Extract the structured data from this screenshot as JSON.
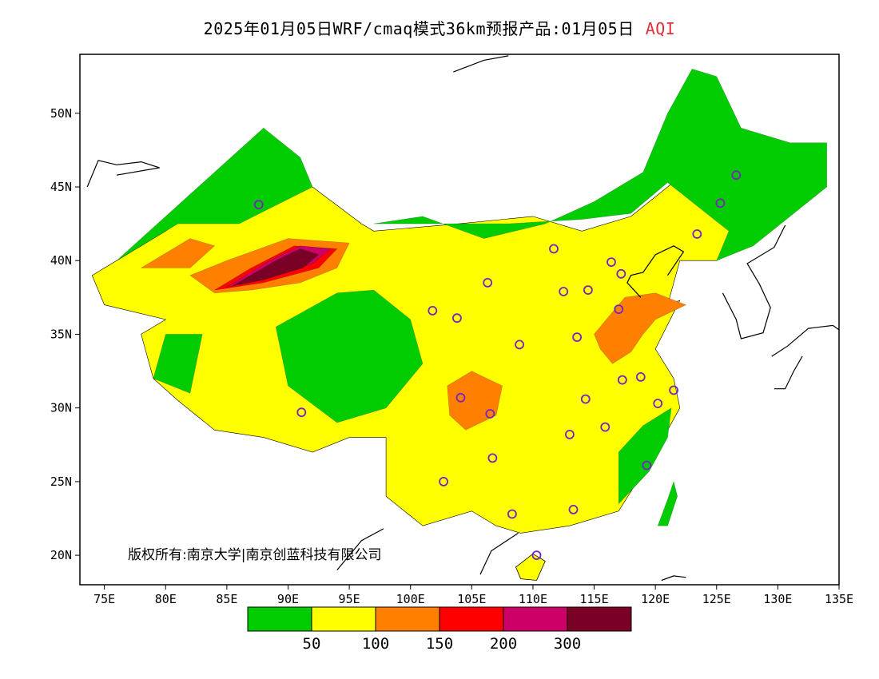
{
  "title": {
    "main": "2025年01月05日WRF/cmaq模式36km预报产品:01月05日",
    "variable": "AQI"
  },
  "copyright": "版权所有:南京大学|南京创蓝科技有限公司",
  "axes": {
    "lon_min": 73,
    "lon_max": 135,
    "lat_min": 18,
    "lat_max": 54,
    "x_ticks": [
      {
        "value": 75,
        "label": "75E"
      },
      {
        "value": 80,
        "label": "80E"
      },
      {
        "value": 85,
        "label": "85E"
      },
      {
        "value": 90,
        "label": "90E"
      },
      {
        "value": 95,
        "label": "95E"
      },
      {
        "value": 100,
        "label": "100E"
      },
      {
        "value": 105,
        "label": "105E"
      },
      {
        "value": 110,
        "label": "110E"
      },
      {
        "value": 115,
        "label": "115E"
      },
      {
        "value": 120,
        "label": "120E"
      },
      {
        "value": 125,
        "label": "125E"
      },
      {
        "value": 130,
        "label": "130E"
      },
      {
        "value": 135,
        "label": "135E"
      }
    ],
    "y_ticks": [
      {
        "value": 20,
        "label": "20N"
      },
      {
        "value": 25,
        "label": "25N"
      },
      {
        "value": 30,
        "label": "30N"
      },
      {
        "value": 35,
        "label": "35N"
      },
      {
        "value": 40,
        "label": "40N"
      },
      {
        "value": 45,
        "label": "45N"
      },
      {
        "value": 50,
        "label": "50N"
      }
    ]
  },
  "legend": {
    "colors": [
      "#00cc00",
      "#ffff00",
      "#ff8000",
      "#ff0000",
      "#cc0066",
      "#7a0025"
    ],
    "labels": [
      "50",
      "100",
      "150",
      "200",
      "300"
    ]
  },
  "chart_data": {
    "type": "heatmap",
    "title": "2025年01月05日WRF/cmaq模式36km预报产品:01月05日 AQI",
    "xlabel": "",
    "ylabel": "",
    "xlim": [
      73,
      135
    ],
    "ylim": [
      18,
      54
    ],
    "color_scale": [
      {
        "range": "0-50",
        "color": "#00cc00"
      },
      {
        "range": "50-100",
        "color": "#ffff00"
      },
      {
        "range": "100-150",
        "color": "#ff8000"
      },
      {
        "range": "150-200",
        "color": "#ff0000"
      },
      {
        "range": "200-300",
        "color": "#cc0066"
      },
      {
        "range": ">300",
        "color": "#7a0025"
      }
    ],
    "regions": [
      {
        "level": "50-100",
        "lonlat": [
          [
            97,
            42
          ],
          [
            104,
            42.5
          ],
          [
            110,
            43
          ],
          [
            114,
            42
          ],
          [
            118,
            43
          ],
          [
            121,
            45
          ],
          [
            124,
            47
          ],
          [
            127,
            48
          ],
          [
            131,
            47
          ],
          [
            130,
            45
          ],
          [
            128,
            42
          ],
          [
            125,
            40
          ],
          [
            122,
            40
          ],
          [
            121,
            37
          ],
          [
            122,
            37.3
          ],
          [
            120,
            34
          ],
          [
            121.5,
            32
          ],
          [
            122,
            30
          ],
          [
            120,
            27
          ],
          [
            117,
            23
          ],
          [
            113,
            22
          ],
          [
            109,
            21.5
          ],
          [
            107,
            22
          ],
          [
            105,
            23
          ],
          [
            101,
            22
          ],
          [
            98,
            24
          ],
          [
            98,
            28
          ],
          [
            95,
            28
          ],
          [
            92,
            27
          ],
          [
            88,
            28
          ],
          [
            84,
            28.5
          ],
          [
            81,
            30.5
          ],
          [
            79,
            32
          ],
          [
            78,
            35
          ],
          [
            80,
            36
          ],
          [
            75,
            37
          ],
          [
            74,
            39
          ],
          [
            76,
            40
          ],
          [
            80,
            42
          ],
          [
            85,
            45
          ],
          [
            88,
            47
          ],
          [
            92,
            45
          ],
          [
            96,
            42.5
          ]
        ]
      },
      {
        "level": "0-50",
        "lonlat": [
          [
            97,
            42.5
          ],
          [
            101,
            43
          ],
          [
            106,
            41.5
          ],
          [
            111,
            42.5
          ],
          [
            115,
            44
          ],
          [
            119,
            46
          ],
          [
            121,
            50
          ],
          [
            123,
            53
          ],
          [
            125,
            52.5
          ],
          [
            127,
            49
          ],
          [
            131,
            48
          ],
          [
            134,
            48
          ],
          [
            134,
            45
          ],
          [
            131,
            43
          ],
          [
            128,
            41
          ],
          [
            125,
            40
          ],
          [
            126,
            42
          ],
          [
            121,
            45.3
          ],
          [
            118,
            43.2
          ],
          [
            114,
            42.8
          ],
          [
            108,
            42.5
          ],
          [
            104,
            42.5
          ]
        ]
      },
      {
        "level": "0-50",
        "lonlat": [
          [
            84,
            46
          ],
          [
            88,
            49
          ],
          [
            91,
            47
          ],
          [
            92,
            45
          ],
          [
            86,
            42.5
          ],
          [
            81,
            42.5
          ],
          [
            76,
            40
          ],
          [
            80,
            43
          ]
        ]
      },
      {
        "level": "0-50",
        "lonlat": [
          [
            89,
            35.5
          ],
          [
            94,
            37.8
          ],
          [
            97,
            38
          ],
          [
            100,
            36
          ],
          [
            101,
            33
          ],
          [
            98,
            30
          ],
          [
            94,
            29
          ],
          [
            90,
            31.5
          ]
        ]
      },
      {
        "level": "0-50",
        "lonlat": [
          [
            80,
            35
          ],
          [
            83,
            35
          ],
          [
            82,
            31
          ],
          [
            79,
            32
          ]
        ]
      },
      {
        "level": "0-50",
        "lonlat": [
          [
            117,
            27
          ],
          [
            119,
            28.8
          ],
          [
            121.3,
            30
          ],
          [
            121,
            28
          ],
          [
            119.5,
            25.7
          ],
          [
            117,
            23.5
          ]
        ]
      },
      {
        "level": "0-50",
        "lonlat": [
          [
            120.2,
            22
          ],
          [
            121,
            23.8
          ],
          [
            121.5,
            25
          ],
          [
            121.8,
            24
          ],
          [
            121,
            22
          ]
        ]
      },
      {
        "level": "100-150",
        "lonlat": [
          [
            103,
            31.5
          ],
          [
            105,
            32.5
          ],
          [
            107.5,
            31.5
          ],
          [
            107,
            29.5
          ],
          [
            104.5,
            28.5
          ],
          [
            103.2,
            29.5
          ]
        ]
      },
      {
        "level": "100-150",
        "lonlat": [
          [
            115,
            35
          ],
          [
            117.5,
            37.5
          ],
          [
            120,
            37.8
          ],
          [
            122.5,
            37
          ],
          [
            120,
            36
          ],
          [
            119,
            35
          ],
          [
            118,
            33.8
          ],
          [
            116.5,
            33
          ],
          [
            115.5,
            34
          ]
        ]
      },
      {
        "level": "100-150",
        "lonlat": [
          [
            82,
            39
          ],
          [
            85,
            40
          ],
          [
            90,
            41.5
          ],
          [
            95,
            41.2
          ],
          [
            94,
            39.5
          ],
          [
            91,
            38.5
          ],
          [
            87,
            38
          ],
          [
            84,
            37.8
          ]
        ]
      },
      {
        "level": "100-150",
        "lonlat": [
          [
            78,
            39.5
          ],
          [
            82,
            41.5
          ],
          [
            84,
            41
          ],
          [
            82,
            39.5
          ]
        ]
      },
      {
        "level": "150-200",
        "lonlat": [
          [
            84,
            38
          ],
          [
            87,
            39.5
          ],
          [
            90.5,
            41
          ],
          [
            94,
            40.8
          ],
          [
            92.5,
            39.5
          ],
          [
            88,
            38.5
          ]
        ]
      },
      {
        "level": "200-300",
        "lonlat": [
          [
            85,
            38.2
          ],
          [
            88.5,
            40
          ],
          [
            91,
            41
          ],
          [
            93.5,
            40.8
          ],
          [
            92,
            39.8
          ],
          [
            88,
            38.7
          ]
        ]
      },
      {
        "level": ">300",
        "lonlat": [
          [
            85.5,
            38.3
          ],
          [
            89,
            40
          ],
          [
            91,
            40.8
          ],
          [
            92.5,
            40.4
          ],
          [
            91.2,
            39.5
          ],
          [
            88,
            38.7
          ]
        ]
      }
    ],
    "markers": [
      {
        "lon": 87.6,
        "lat": 43.8
      },
      {
        "lon": 91.1,
        "lat": 29.7
      },
      {
        "lon": 101.8,
        "lat": 36.6
      },
      {
        "lon": 103.8,
        "lat": 36.1
      },
      {
        "lon": 106.3,
        "lat": 38.5
      },
      {
        "lon": 111.7,
        "lat": 40.8
      },
      {
        "lon": 112.5,
        "lat": 37.9
      },
      {
        "lon": 114.5,
        "lat": 38
      },
      {
        "lon": 116.4,
        "lat": 39.9
      },
      {
        "lon": 117.2,
        "lat": 39.1
      },
      {
        "lon": 117,
        "lat": 36.7
      },
      {
        "lon": 113.6,
        "lat": 34.8
      },
      {
        "lon": 108.9,
        "lat": 34.3
      },
      {
        "lon": 104.1,
        "lat": 30.7
      },
      {
        "lon": 106.5,
        "lat": 29.6
      },
      {
        "lon": 114.3,
        "lat": 30.6
      },
      {
        "lon": 117.3,
        "lat": 31.9
      },
      {
        "lon": 118.8,
        "lat": 32.1
      },
      {
        "lon": 120.2,
        "lat": 30.3
      },
      {
        "lon": 121.5,
        "lat": 31.2
      },
      {
        "lon": 115.9,
        "lat": 28.7
      },
      {
        "lon": 113,
        "lat": 28.2
      },
      {
        "lon": 106.7,
        "lat": 26.6
      },
      {
        "lon": 102.7,
        "lat": 25
      },
      {
        "lon": 108.3,
        "lat": 22.8
      },
      {
        "lon": 113.3,
        "lat": 23.1
      },
      {
        "lon": 119.3,
        "lat": 26.1
      },
      {
        "lon": 110.3,
        "lat": 20
      },
      {
        "lon": 123.4,
        "lat": 41.8
      },
      {
        "lon": 125.3,
        "lat": 43.9
      },
      {
        "lon": 126.6,
        "lat": 45.8
      }
    ]
  }
}
